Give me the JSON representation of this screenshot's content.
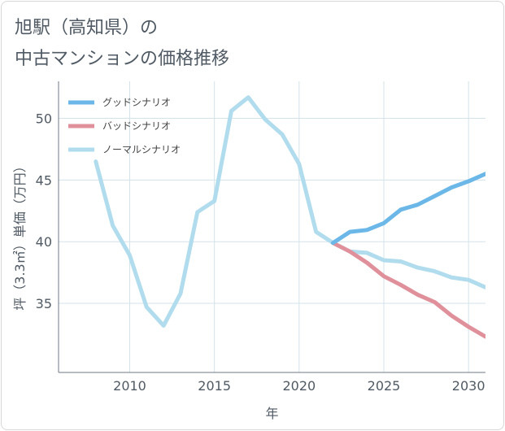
{
  "title_lines": [
    "旭駅（高知県）の",
    "中古マンションの価格推移"
  ],
  "chart_data": {
    "type": "line",
    "xlabel": "年",
    "ylabel": "坪（3.3㎡）単価（万円）",
    "xlim": [
      2005.8,
      2031.0
    ],
    "ylim": [
      29.4,
      53.0
    ],
    "xticks": [
      2010,
      2015,
      2020,
      2025,
      2030
    ],
    "yticks": [
      35,
      40,
      45,
      50
    ],
    "legend_position": "top-left",
    "grid": true,
    "series": [
      {
        "name": "グッドシナリオ",
        "color": "#6bb8e8",
        "x": [
          2022,
          2023,
          2024,
          2025,
          2026,
          2027,
          2028,
          2029,
          2030,
          2031
        ],
        "y": [
          39.9,
          40.8,
          40.95,
          41.5,
          42.6,
          43.0,
          43.7,
          44.4,
          44.9,
          45.5
        ]
      },
      {
        "name": "バッドシナリオ",
        "color": "#e0909a",
        "x": [
          2022,
          2023,
          2024,
          2025,
          2026,
          2027,
          2028,
          2029,
          2030,
          2031
        ],
        "y": [
          39.9,
          39.2,
          38.3,
          37.2,
          36.5,
          35.7,
          35.1,
          34.0,
          33.1,
          32.3
        ]
      },
      {
        "name": "ノーマルシナリオ",
        "color": "#b0dced",
        "x": [
          2008,
          2009,
          2010,
          2011,
          2012,
          2013,
          2014,
          2015,
          2016,
          2017,
          2018,
          2019,
          2020,
          2021,
          2022,
          2023,
          2024,
          2025,
          2026,
          2027,
          2028,
          2029,
          2030,
          2031
        ],
        "y": [
          46.5,
          41.3,
          38.9,
          34.7,
          33.2,
          35.8,
          42.4,
          43.3,
          50.6,
          51.7,
          49.9,
          48.7,
          46.3,
          40.8,
          39.9,
          39.2,
          39.1,
          38.5,
          38.4,
          37.9,
          37.6,
          37.1,
          36.9,
          36.3
        ]
      }
    ]
  }
}
